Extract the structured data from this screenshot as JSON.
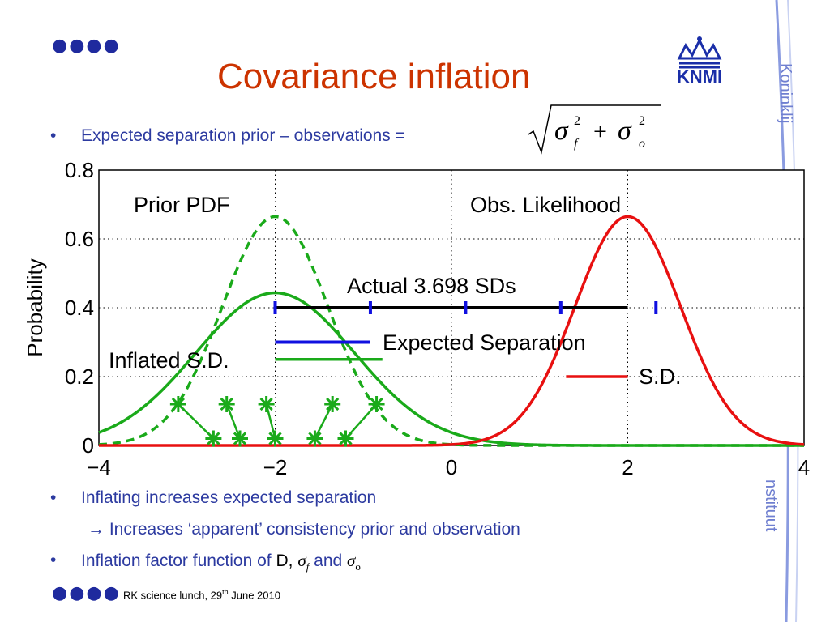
{
  "slide": {
    "title": "Covariance inflation",
    "dots_top": "●●●●",
    "dots_bottom": "●●●●",
    "bullets": [
      {
        "text": "Expected separation prior – observations ="
      },
      {
        "text": "Inflating increases expected separation"
      },
      {
        "text": "→ Increases ‘apparent’ consistency prior and observation"
      },
      {
        "text": "Inflation factor function of"
      }
    ],
    "bullet_symbol": "•",
    "last_bullet_tail": {
      "d": "D,",
      "and": "and"
    },
    "footer": {
      "prefix": "RK science lunch, 29",
      "sup": "th",
      "suffix": " June 2010"
    },
    "logo_text": "KNMI",
    "side_top": "Koninklij",
    "side_bottom": "nstituut"
  },
  "colors": {
    "title": "#cc3300",
    "bullets": "#2c3aa0",
    "prior": "#1aaa1a",
    "obs": "#e81010",
    "expected": "#1010e0",
    "actual": "#000000",
    "side": "#6f7fd0"
  },
  "chart_data": {
    "type": "line",
    "xlabel": "",
    "ylabel": "Probability",
    "xlim": [
      -4,
      4
    ],
    "ylim": [
      0,
      0.8
    ],
    "xticks": [
      "−4",
      "−2",
      "0",
      "2",
      "4"
    ],
    "yticks": [
      "0",
      "0.2",
      "0.4",
      "0.6",
      "0.8"
    ],
    "grid": true,
    "annotations": {
      "prior": "Prior PDF",
      "obs": "Obs. Likelihood",
      "actual": "Actual 3.698 SDs",
      "expected": "Expected Separation",
      "inflated": "Inflated S.D.",
      "sd": "S.D."
    },
    "series": [
      {
        "name": "Prior PDF",
        "mean": -2,
        "sd": 0.6,
        "style": "dashed"
      },
      {
        "name": "Inflated S.D.",
        "mean": -2,
        "sd": 0.9,
        "style": "solid"
      },
      {
        "name": "Obs. Likelihood",
        "mean": 2,
        "sd": 0.6,
        "style": "solid"
      }
    ],
    "actual_separation": {
      "from": -2,
      "to": 2,
      "y": 0.4,
      "ticks": [
        -2,
        -0.92,
        0.16,
        1.24,
        2.32
      ]
    },
    "expected_separation_line": {
      "from": -2,
      "to": -0.92,
      "y": 0.3
    },
    "inflated_sd_line": {
      "from": -2,
      "to": -0.6,
      "y": 0.25
    },
    "obs_sd_line": {
      "from": 1.3,
      "to": 2.0,
      "y": 0.2
    },
    "ensemble_top": [
      [
        -3.1,
        0.12
      ],
      [
        -2.55,
        0.12
      ],
      [
        -2.1,
        0.12
      ],
      [
        -1.35,
        0.12
      ],
      [
        -0.85,
        0.12
      ]
    ],
    "ensemble_bottom": [
      [
        -2.7,
        0.02
      ],
      [
        -2.4,
        0.02
      ],
      [
        -2.0,
        0.02
      ],
      [
        -1.55,
        0.02
      ],
      [
        -1.2,
        0.02
      ]
    ]
  }
}
